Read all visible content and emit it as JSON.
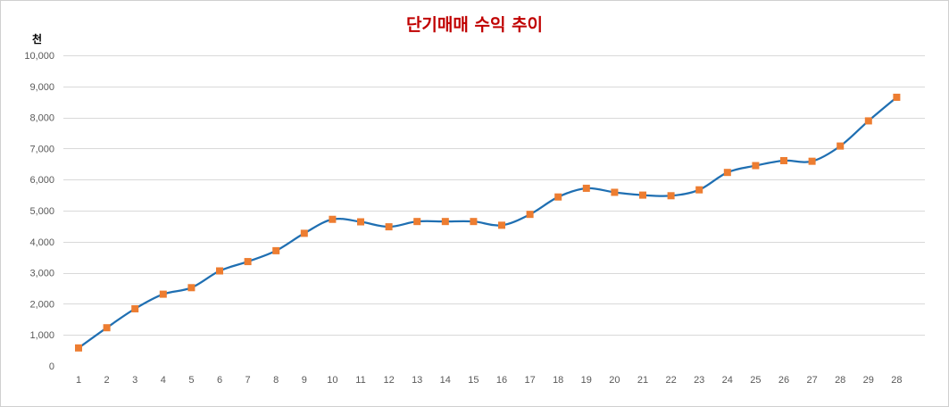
{
  "chart_data": {
    "type": "line",
    "title": "단기매매 수익 추이",
    "ylabel": "천",
    "xlabel": "",
    "x": [
      1,
      2,
      3,
      4,
      5,
      6,
      7,
      8,
      9,
      10,
      11,
      12,
      13,
      14,
      15,
      16,
      17,
      18,
      19,
      20,
      21,
      22,
      23,
      24,
      25,
      26,
      27,
      28,
      29,
      28
    ],
    "x_tick_labels": [
      "1",
      "2",
      "3",
      "4",
      "5",
      "6",
      "7",
      "8",
      "9",
      "10",
      "11",
      "12",
      "13",
      "14",
      "15",
      "16",
      "17",
      "18",
      "19",
      "20",
      "21",
      "22",
      "23",
      "24",
      "25",
      "26",
      "27",
      "28",
      "29",
      "28"
    ],
    "series": [
      {
        "values": [
          580,
          1230,
          1840,
          2310,
          2520,
          3060,
          3360,
          3710,
          4270,
          4720,
          4640,
          4480,
          4650,
          4650,
          4650,
          4530,
          4880,
          5440,
          5720,
          5590,
          5500,
          5480,
          5670,
          6230,
          6450,
          6610,
          6590,
          7080,
          7890,
          8650
        ],
        "line_color": "#1f6fb2",
        "marker_color": "#ed7d31",
        "marker": "square",
        "smooth": true
      }
    ],
    "ylim": [
      0,
      10000
    ],
    "y_ticks": [
      0,
      1000,
      2000,
      3000,
      4000,
      5000,
      6000,
      7000,
      8000,
      9000,
      10000
    ],
    "y_tick_labels": [
      "0",
      "1,000",
      "2,000",
      "3,000",
      "4,000",
      "5,000",
      "6,000",
      "7,000",
      "8,000",
      "9,000",
      "10,000"
    ],
    "grid": true,
    "legend": "none",
    "title_color": "#c00000",
    "grid_color": "#d9d9d9"
  }
}
